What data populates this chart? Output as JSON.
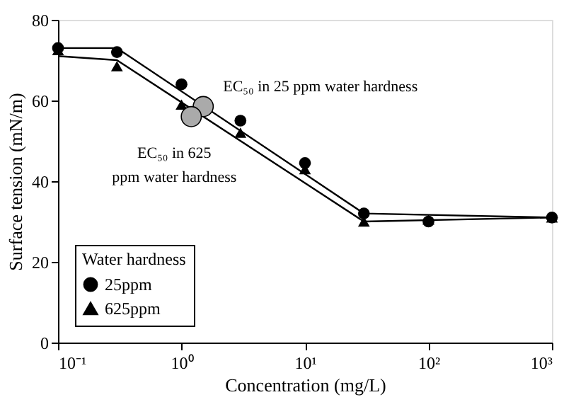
{
  "chart_data": {
    "type": "scatter",
    "xlabel": "Concentration (mg/L)",
    "ylabel": "Surface  tension  (mN/m)",
    "legend_title": "Water hardness",
    "legend": "bottom left",
    "grid": false,
    "log": "x",
    "xlim": [
      0.1,
      1000
    ],
    "xticks": [
      {
        "value": 0.1,
        "label": "10⁻¹"
      },
      {
        "value": 1,
        "label": "10⁰"
      },
      {
        "value": 10,
        "label": "10¹"
      },
      {
        "value": 100,
        "label": "10²"
      },
      {
        "value": 1000,
        "label": "10³"
      }
    ],
    "ylim": [
      0,
      80
    ],
    "yticks": [
      0,
      20,
      40,
      60,
      80
    ],
    "series": [
      {
        "name": "25ppm",
        "color": "#000000",
        "marker": "circle",
        "x": [
          0.1,
          0.3,
          1,
          3,
          10,
          30,
          100,
          1000
        ],
        "values": [
          73,
          72,
          64,
          55,
          44.5,
          32,
          30,
          31
        ]
      },
      {
        "name": "625ppm",
        "color": "#000000",
        "marker": "triangle",
        "x": [
          0.1,
          0.3,
          1,
          3,
          10,
          30,
          100,
          1000
        ],
        "values": [
          72.5,
          68.5,
          59,
          52,
          43,
          30,
          30.5,
          31
        ]
      },
      {
        "type": "line",
        "color": "#000000",
        "marker": "none",
        "x": [
          0.1,
          0.3,
          30,
          1000
        ],
        "values": [
          73,
          73,
          32,
          31
        ]
      },
      {
        "type": "line",
        "color": "#000000",
        "marker": "none",
        "x": [
          0.1,
          0.3,
          30,
          1000
        ],
        "values": [
          71,
          70,
          30,
          31
        ]
      }
    ],
    "annotations": [
      {
        "text": "EC₅₀ in 25 ppm water hardness",
        "x": 1.5,
        "y": 58.5
      },
      {
        "text": "EC₅₀ in 625 ppm water hardness",
        "x": 1.2,
        "y": 56
      }
    ]
  }
}
